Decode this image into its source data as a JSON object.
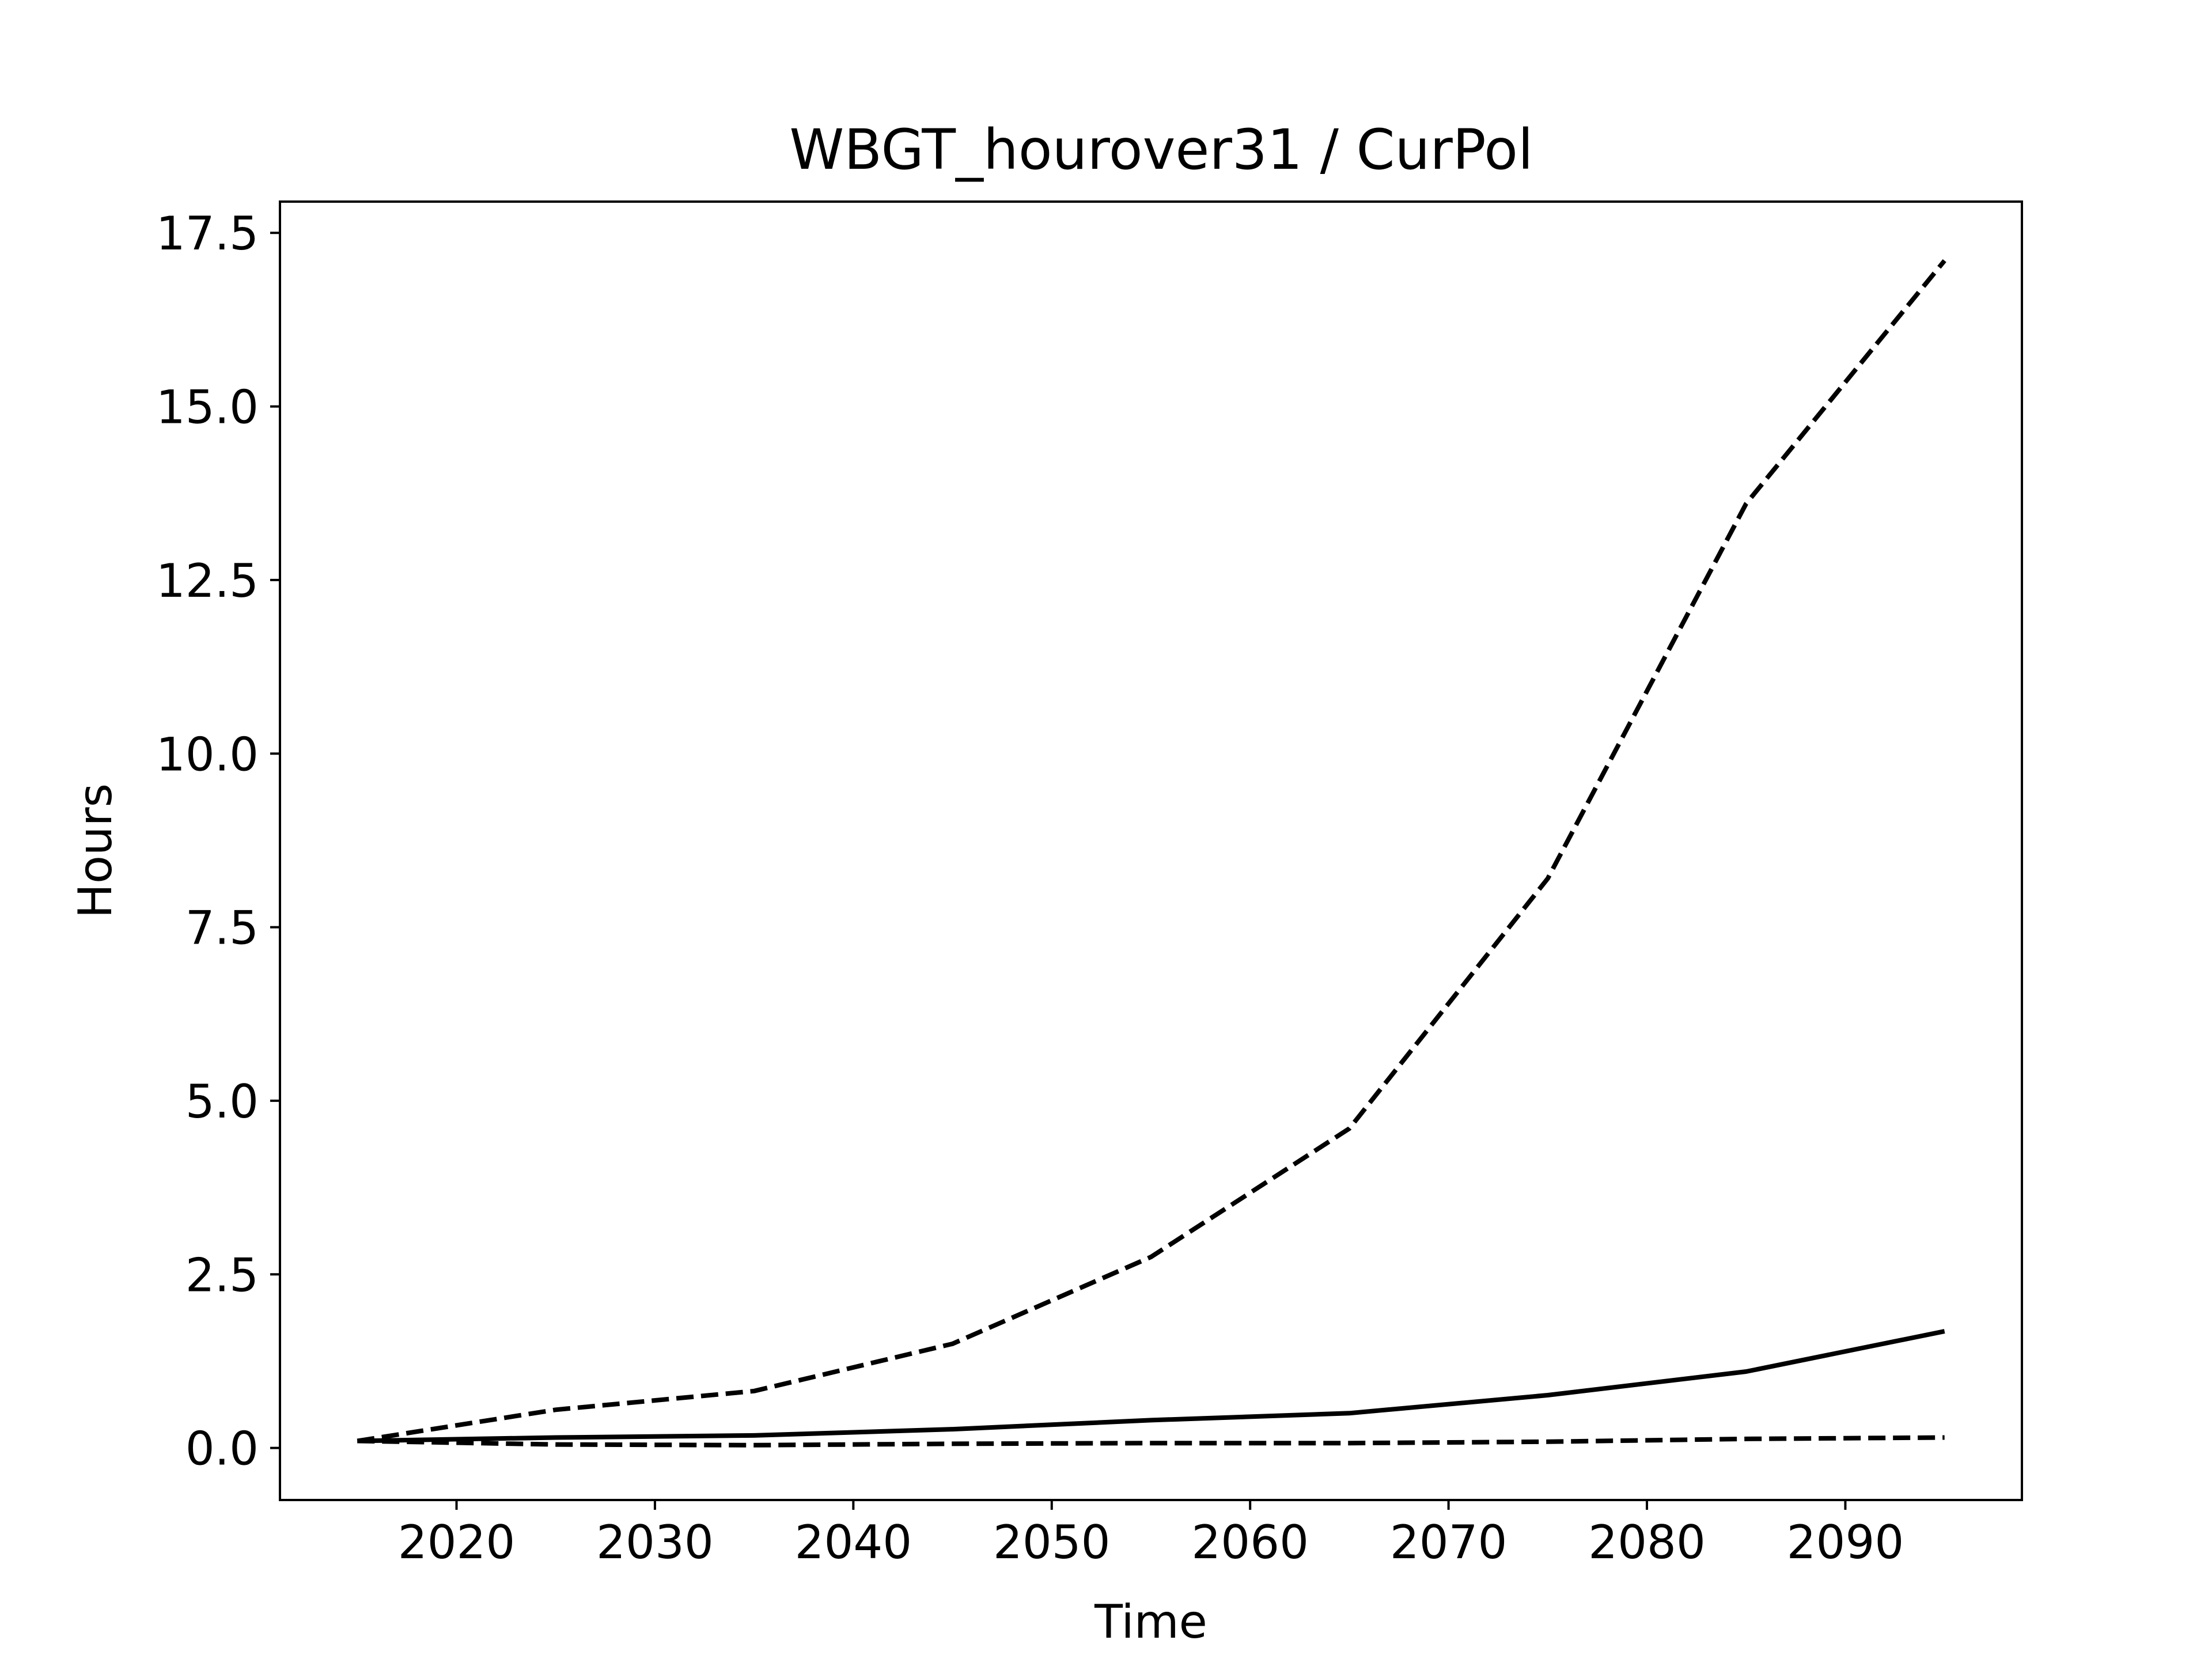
{
  "chart_data": {
    "type": "line",
    "title": "WBGT_hourover31 / CurPol",
    "xlabel": "Time",
    "ylabel": "Hours",
    "xlim": [
      2011.1,
      2098.9
    ],
    "ylim": [
      -0.75,
      17.95
    ],
    "x_ticks": [
      2020,
      2030,
      2040,
      2050,
      2060,
      2070,
      2080,
      2090
    ],
    "x_tick_labels": [
      "2020",
      "2030",
      "2040",
      "2050",
      "2060",
      "2070",
      "2080",
      "2090"
    ],
    "y_ticks": [
      0,
      2.5,
      5,
      7.5,
      10,
      12.5,
      15,
      17.5
    ],
    "y_tick_labels": [
      "0.0",
      "2.5",
      "5.0",
      "7.5",
      "10.0",
      "12.5",
      "15.0",
      "17.5"
    ],
    "grid": false,
    "legend": "none",
    "x": [
      2015,
      2025,
      2035,
      2045,
      2055,
      2065,
      2075,
      2085,
      2095
    ],
    "series": [
      {
        "style": "dashed",
        "color": "#000000",
        "values": [
          0.1,
          0.55,
          0.82,
          1.5,
          2.75,
          4.6,
          8.2,
          13.6,
          17.1
        ]
      },
      {
        "style": "solid",
        "color": "#000000",
        "values": [
          0.1,
          0.15,
          0.18,
          0.27,
          0.4,
          0.5,
          0.76,
          1.1,
          1.68
        ]
      },
      {
        "style": "dashed",
        "color": "#000000",
        "values": [
          0.1,
          0.05,
          0.04,
          0.06,
          0.07,
          0.07,
          0.09,
          0.13,
          0.15
        ]
      }
    ]
  }
}
